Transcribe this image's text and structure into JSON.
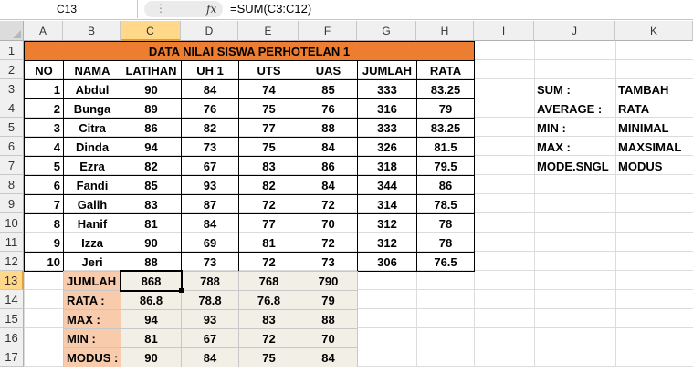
{
  "formula_bar": {
    "name_box": "C13",
    "fx": "fx",
    "formula": "=SUM(C3:C12)"
  },
  "columns": [
    "A",
    "B",
    "C",
    "D",
    "E",
    "F",
    "G",
    "H",
    "I",
    "J",
    "K"
  ],
  "rows": [
    "1",
    "2",
    "3",
    "4",
    "5",
    "6",
    "7",
    "8",
    "9",
    "10",
    "11",
    "12",
    "13",
    "14",
    "15",
    "16",
    "17"
  ],
  "table": {
    "title": "DATA NILAI SISWA PERHOTELAN 1",
    "headers": [
      "NO",
      "NAMA",
      "LATIHAN",
      "UH 1",
      "UTS",
      "UAS",
      "JUMLAH",
      "RATA"
    ],
    "data": [
      [
        "1",
        "Abdul",
        "90",
        "84",
        "74",
        "85",
        "333",
        "83.25"
      ],
      [
        "2",
        "Bunga",
        "89",
        "76",
        "75",
        "76",
        "316",
        "79"
      ],
      [
        "3",
        "Citra",
        "86",
        "82",
        "77",
        "88",
        "333",
        "83.25"
      ],
      [
        "4",
        "Dinda",
        "94",
        "73",
        "75",
        "84",
        "326",
        "81.5"
      ],
      [
        "5",
        "Ezra",
        "82",
        "67",
        "83",
        "86",
        "318",
        "79.5"
      ],
      [
        "6",
        "Fandi",
        "85",
        "93",
        "82",
        "84",
        "344",
        "86"
      ],
      [
        "7",
        "Galih",
        "83",
        "87",
        "72",
        "72",
        "314",
        "78.5"
      ],
      [
        "8",
        "Hanif",
        "81",
        "84",
        "77",
        "70",
        "312",
        "78"
      ],
      [
        "9",
        "Izza",
        "90",
        "69",
        "81",
        "72",
        "312",
        "78"
      ],
      [
        "10",
        "Jeri",
        "88",
        "73",
        "72",
        "73",
        "306",
        "76.5"
      ]
    ]
  },
  "summary": {
    "labels": [
      "JUMLAH",
      "RATA :",
      "MAX :",
      "MIN :",
      "MODUS :"
    ],
    "values": [
      [
        "868",
        "788",
        "768",
        "790"
      ],
      [
        "86.8",
        "78.8",
        "76.8",
        "79"
      ],
      [
        "94",
        "93",
        "83",
        "88"
      ],
      [
        "81",
        "67",
        "72",
        "70"
      ],
      [
        "90",
        "84",
        "75",
        "84"
      ]
    ]
  },
  "legend": [
    [
      "SUM :",
      "TAMBAH"
    ],
    [
      "AVERAGE :",
      "RATA"
    ],
    [
      "MIN :",
      "MINIMAL"
    ],
    [
      "MAX :",
      "MAXSIMAL"
    ],
    [
      "MODE.SNGL",
      "MODUS"
    ]
  ],
  "colors": {
    "title_fill": "#ed7d31",
    "label_fill": "#f8cbad",
    "summary_fill": "#f2f0e6",
    "selection": "#ffd88a"
  }
}
